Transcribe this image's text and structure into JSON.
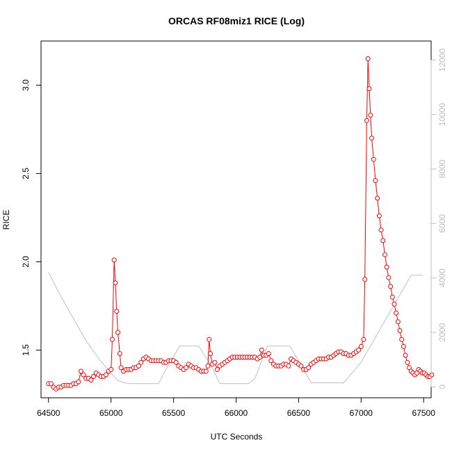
{
  "chart_data": {
    "type": "line",
    "title": "ORCAS RF08miz1 RICE (Log)",
    "xlabel": "UTC Seconds",
    "ylabel": "RICE",
    "xlim": [
      64440,
      67560
    ],
    "ylim": [
      1.23,
      3.25
    ],
    "y2lim": [
      -400,
      12700
    ],
    "x_ticks": [
      64500,
      65000,
      65500,
      66000,
      66500,
      67000,
      67500
    ],
    "y_ticks": [
      1.5,
      2.0,
      2.5,
      3.0
    ],
    "y_tick_labels": [
      "1.5",
      "2.0",
      "2.5",
      "3.0"
    ],
    "y2_ticks": [
      0,
      2000,
      4000,
      6000,
      8000,
      10000,
      12000
    ],
    "grid": false,
    "series": [
      {
        "axis": "left",
        "style": "line+circles",
        "color": "#ff0000",
        "points": [
          [
            64500,
            1.31
          ],
          [
            64520,
            1.31
          ],
          [
            64540,
            1.29
          ],
          [
            64560,
            1.28
          ],
          [
            64580,
            1.29
          ],
          [
            64600,
            1.29
          ],
          [
            64620,
            1.3
          ],
          [
            64640,
            1.3
          ],
          [
            64660,
            1.3
          ],
          [
            64680,
            1.3
          ],
          [
            64700,
            1.31
          ],
          [
            64720,
            1.31
          ],
          [
            64740,
            1.32
          ],
          [
            64760,
            1.38
          ],
          [
            64780,
            1.36
          ],
          [
            64800,
            1.34
          ],
          [
            64820,
            1.34
          ],
          [
            64840,
            1.33
          ],
          [
            64860,
            1.35
          ],
          [
            64880,
            1.37
          ],
          [
            64900,
            1.36
          ],
          [
            64920,
            1.35
          ],
          [
            64940,
            1.35
          ],
          [
            64960,
            1.36
          ],
          [
            64980,
            1.38
          ],
          [
            65000,
            1.39
          ],
          [
            65010,
            1.56
          ],
          [
            65025,
            2.01
          ],
          [
            65035,
            1.88
          ],
          [
            65045,
            1.72
          ],
          [
            65055,
            1.6
          ],
          [
            65070,
            1.48
          ],
          [
            65080,
            1.4
          ],
          [
            65100,
            1.38
          ],
          [
            65120,
            1.39
          ],
          [
            65140,
            1.39
          ],
          [
            65160,
            1.39
          ],
          [
            65180,
            1.4
          ],
          [
            65200,
            1.4
          ],
          [
            65220,
            1.41
          ],
          [
            65240,
            1.43
          ],
          [
            65260,
            1.45
          ],
          [
            65280,
            1.46
          ],
          [
            65300,
            1.45
          ],
          [
            65320,
            1.44
          ],
          [
            65340,
            1.44
          ],
          [
            65360,
            1.44
          ],
          [
            65380,
            1.44
          ],
          [
            65400,
            1.44
          ],
          [
            65420,
            1.43
          ],
          [
            65440,
            1.43
          ],
          [
            65460,
            1.44
          ],
          [
            65480,
            1.44
          ],
          [
            65500,
            1.44
          ],
          [
            65520,
            1.43
          ],
          [
            65540,
            1.41
          ],
          [
            65560,
            1.4
          ],
          [
            65580,
            1.39
          ],
          [
            65600,
            1.4
          ],
          [
            65620,
            1.42
          ],
          [
            65640,
            1.41
          ],
          [
            65660,
            1.4
          ],
          [
            65680,
            1.4
          ],
          [
            65700,
            1.39
          ],
          [
            65720,
            1.38
          ],
          [
            65740,
            1.38
          ],
          [
            65760,
            1.38
          ],
          [
            65775,
            1.41
          ],
          [
            65785,
            1.56
          ],
          [
            65795,
            1.48
          ],
          [
            65810,
            1.42
          ],
          [
            65830,
            1.43
          ],
          [
            65850,
            1.39
          ],
          [
            65870,
            1.41
          ],
          [
            65890,
            1.42
          ],
          [
            65910,
            1.43
          ],
          [
            65930,
            1.44
          ],
          [
            65950,
            1.45
          ],
          [
            65970,
            1.46
          ],
          [
            65990,
            1.46
          ],
          [
            66010,
            1.46
          ],
          [
            66030,
            1.46
          ],
          [
            66050,
            1.46
          ],
          [
            66070,
            1.46
          ],
          [
            66090,
            1.46
          ],
          [
            66110,
            1.46
          ],
          [
            66130,
            1.46
          ],
          [
            66150,
            1.46
          ],
          [
            66170,
            1.45
          ],
          [
            66190,
            1.46
          ],
          [
            66205,
            1.5
          ],
          [
            66220,
            1.47
          ],
          [
            66240,
            1.47
          ],
          [
            66260,
            1.48
          ],
          [
            66280,
            1.44
          ],
          [
            66300,
            1.42
          ],
          [
            66320,
            1.41
          ],
          [
            66340,
            1.41
          ],
          [
            66360,
            1.41
          ],
          [
            66380,
            1.42
          ],
          [
            66400,
            1.42
          ],
          [
            66420,
            1.41
          ],
          [
            66440,
            1.45
          ],
          [
            66460,
            1.44
          ],
          [
            66480,
            1.43
          ],
          [
            66500,
            1.42
          ],
          [
            66520,
            1.41
          ],
          [
            66540,
            1.39
          ],
          [
            66560,
            1.39
          ],
          [
            66580,
            1.4
          ],
          [
            66600,
            1.42
          ],
          [
            66620,
            1.43
          ],
          [
            66640,
            1.44
          ],
          [
            66660,
            1.45
          ],
          [
            66680,
            1.45
          ],
          [
            66700,
            1.45
          ],
          [
            66720,
            1.45
          ],
          [
            66740,
            1.46
          ],
          [
            66760,
            1.46
          ],
          [
            66780,
            1.47
          ],
          [
            66800,
            1.48
          ],
          [
            66820,
            1.49
          ],
          [
            66840,
            1.49
          ],
          [
            66860,
            1.48
          ],
          [
            66880,
            1.48
          ],
          [
            66900,
            1.47
          ],
          [
            66920,
            1.47
          ],
          [
            66940,
            1.48
          ],
          [
            66960,
            1.49
          ],
          [
            66980,
            1.5
          ],
          [
            67000,
            1.52
          ],
          [
            67020,
            1.56
          ],
          [
            67030,
            1.9
          ],
          [
            67045,
            2.8
          ],
          [
            67055,
            3.15
          ],
          [
            67065,
            2.98
          ],
          [
            67075,
            2.83
          ],
          [
            67085,
            2.7
          ],
          [
            67100,
            2.58
          ],
          [
            67115,
            2.46
          ],
          [
            67130,
            2.36
          ],
          [
            67145,
            2.26
          ],
          [
            67160,
            2.18
          ],
          [
            67175,
            2.12
          ],
          [
            67190,
            2.04
          ],
          [
            67205,
            1.97
          ],
          [
            67220,
            1.91
          ],
          [
            67235,
            1.86
          ],
          [
            67250,
            1.8
          ],
          [
            67265,
            1.76
          ],
          [
            67280,
            1.71
          ],
          [
            67295,
            1.66
          ],
          [
            67310,
            1.61
          ],
          [
            67325,
            1.56
          ],
          [
            67340,
            1.52
          ],
          [
            67355,
            1.47
          ],
          [
            67370,
            1.43
          ],
          [
            67385,
            1.4
          ],
          [
            67400,
            1.38
          ],
          [
            67415,
            1.37
          ],
          [
            67430,
            1.36
          ],
          [
            67445,
            1.37
          ],
          [
            67460,
            1.39
          ],
          [
            67475,
            1.38
          ],
          [
            67490,
            1.37
          ],
          [
            67505,
            1.37
          ],
          [
            67520,
            1.36
          ],
          [
            67535,
            1.35
          ],
          [
            67550,
            1.35
          ],
          [
            67565,
            1.36
          ]
        ]
      },
      {
        "axis": "right",
        "style": "line",
        "color": "#c0c0c0",
        "points": [
          [
            64500,
            4200
          ],
          [
            64590,
            3400
          ],
          [
            64700,
            2500
          ],
          [
            64800,
            1700
          ],
          [
            64900,
            1050
          ],
          [
            65000,
            500
          ],
          [
            65050,
            250
          ],
          [
            65100,
            150
          ],
          [
            65150,
            120
          ],
          [
            65380,
            120
          ],
          [
            65470,
            900
          ],
          [
            65550,
            1500
          ],
          [
            65700,
            1500
          ],
          [
            65800,
            800
          ],
          [
            65870,
            120
          ],
          [
            66100,
            120
          ],
          [
            66150,
            300
          ],
          [
            66250,
            1500
          ],
          [
            66430,
            1500
          ],
          [
            66520,
            800
          ],
          [
            66600,
            150
          ],
          [
            66860,
            150
          ],
          [
            66880,
            250
          ],
          [
            67000,
            900
          ],
          [
            67100,
            1700
          ],
          [
            67200,
            2500
          ],
          [
            67300,
            3300
          ],
          [
            67400,
            4100
          ],
          [
            67430,
            4100
          ],
          [
            67495,
            4100
          ]
        ]
      }
    ]
  }
}
